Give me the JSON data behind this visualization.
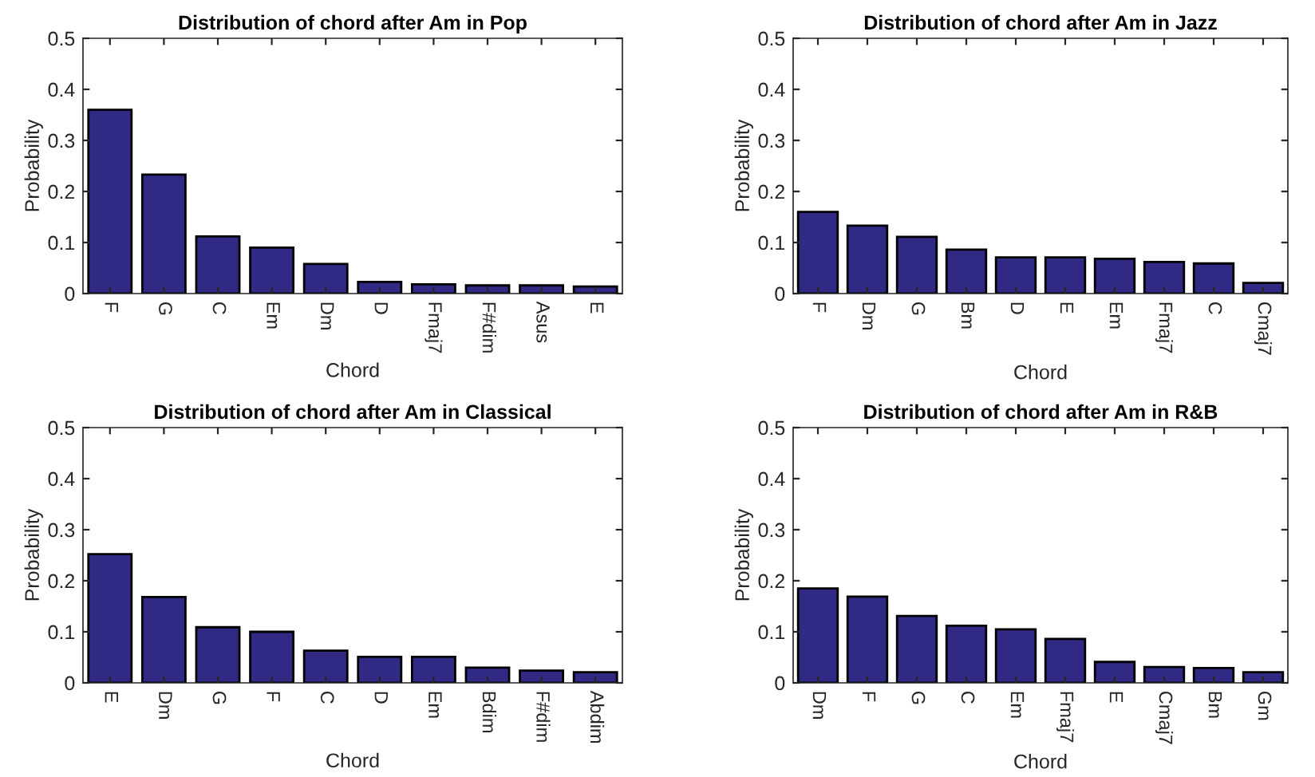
{
  "chart_data": [
    {
      "type": "bar",
      "title": "Distribution of chord after Am in Pop",
      "xlabel": "Chord",
      "ylabel": "Probability",
      "categories": [
        "F",
        "G",
        "C",
        "Em",
        "Dm",
        "D",
        "Fmaj7",
        "F#dim",
        "Asus",
        "E"
      ],
      "values": [
        0.36,
        0.233,
        0.112,
        0.09,
        0.058,
        0.023,
        0.018,
        0.016,
        0.016,
        0.014
      ],
      "color": "#312a84",
      "ylim": [
        0,
        0.5
      ],
      "yticks": [
        0,
        0.1,
        0.2,
        0.3,
        0.4,
        0.5
      ],
      "grid": false
    },
    {
      "type": "bar",
      "title": "Distribution of chord after Am in Jazz",
      "xlabel": "Chord",
      "ylabel": "Probability",
      "categories": [
        "F",
        "Dm",
        "G",
        "Bm",
        "D",
        "E",
        "Em",
        "Fmaj7",
        "C",
        "Cmaj7"
      ],
      "values": [
        0.16,
        0.133,
        0.111,
        0.086,
        0.071,
        0.071,
        0.068,
        0.062,
        0.059,
        0.021
      ],
      "color": "#312a84",
      "ylim": [
        0,
        0.5
      ],
      "yticks": [
        0,
        0.1,
        0.2,
        0.3,
        0.4,
        0.5
      ],
      "grid": false
    },
    {
      "type": "bar",
      "title": "Distribution of chord after Am in Classical",
      "xlabel": "Chord",
      "ylabel": "Probability",
      "categories": [
        "E",
        "Dm",
        "G",
        "F",
        "C",
        "D",
        "Em",
        "Bdim",
        "F#dim",
        "Abdim"
      ],
      "values": [
        0.252,
        0.168,
        0.109,
        0.1,
        0.063,
        0.051,
        0.051,
        0.03,
        0.024,
        0.021
      ],
      "color": "#312a84",
      "ylim": [
        0,
        0.5
      ],
      "yticks": [
        0,
        0.1,
        0.2,
        0.3,
        0.4,
        0.5
      ],
      "grid": false
    },
    {
      "type": "bar",
      "title": "Distribution of chord after Am in R&B",
      "xlabel": "Chord",
      "ylabel": "Probability",
      "categories": [
        "Dm",
        "F",
        "G",
        "C",
        "Em",
        "Fmaj7",
        "E",
        "Cmaj7",
        "Bm",
        "Gm"
      ],
      "values": [
        0.185,
        0.169,
        0.131,
        0.112,
        0.105,
        0.086,
        0.041,
        0.031,
        0.029,
        0.021
      ],
      "color": "#312a84",
      "ylim": [
        0,
        0.5
      ],
      "yticks": [
        0,
        0.1,
        0.2,
        0.3,
        0.4,
        0.5
      ],
      "grid": false
    }
  ]
}
